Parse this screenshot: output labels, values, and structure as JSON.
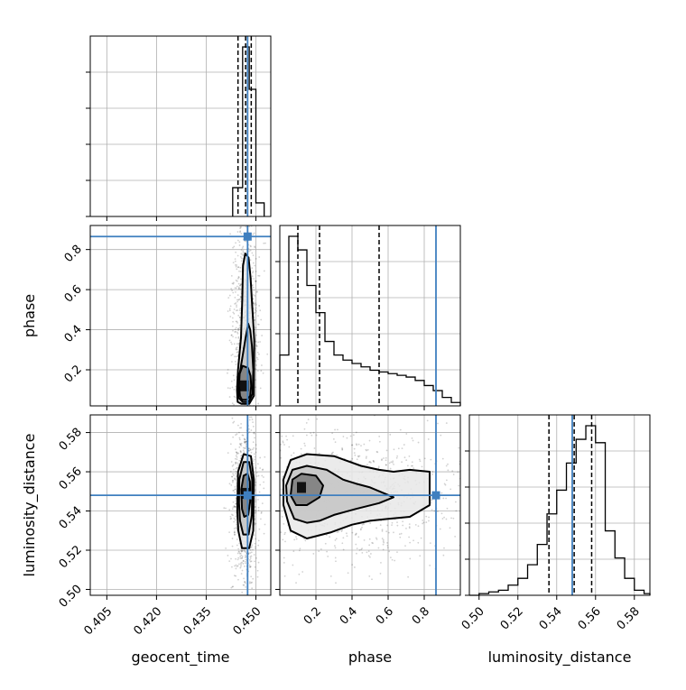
{
  "chart_data": {
    "type": "corner",
    "parameters": [
      "geocent_time",
      "phase",
      "luminosity_distance"
    ],
    "truths": {
      "geocent_time": 0.4475,
      "phase": 0.865,
      "luminosity_distance": 0.548
    },
    "accent_color": "#3f7fbf",
    "histograms": [
      {
        "parameter": "geocent_time",
        "xlim": [
          0.4,
          0.4545
        ],
        "quantiles": [
          0.4446,
          0.4469,
          0.4486
        ],
        "bin_edges": [
          0.443,
          0.446,
          0.448,
          0.45,
          0.4525
        ],
        "counts": [
          0.17,
          1.0,
          0.75,
          0.08
        ],
        "x_tick_values": [
          0.405,
          0.42,
          0.435,
          0.45
        ],
        "x_tick_labels": [
          "0.405",
          "0.420",
          "0.435",
          "0.450"
        ]
      },
      {
        "parameter": "phase",
        "xlim": [
          0.0,
          1.0
        ],
        "quantiles": [
          0.1,
          0.22,
          0.55
        ],
        "bin_edges": [
          0.0,
          0.05,
          0.1,
          0.15,
          0.2,
          0.25,
          0.3,
          0.35,
          0.4,
          0.45,
          0.5,
          0.55,
          0.6,
          0.65,
          0.7,
          0.75,
          0.8,
          0.85,
          0.9,
          0.95,
          1.0
        ],
        "counts": [
          0.3,
          1.0,
          0.92,
          0.71,
          0.55,
          0.38,
          0.3,
          0.27,
          0.25,
          0.23,
          0.21,
          0.2,
          0.19,
          0.18,
          0.17,
          0.15,
          0.12,
          0.09,
          0.05,
          0.02
        ],
        "x_tick_values": [
          0.2,
          0.4,
          0.6,
          0.8
        ],
        "x_tick_labels": [
          "0.2",
          "0.4",
          "0.6",
          "0.8"
        ]
      },
      {
        "parameter": "luminosity_distance",
        "xlim": [
          0.495,
          0.588
        ],
        "quantiles": [
          0.536,
          0.549,
          0.558
        ],
        "bin_edges": [
          0.495,
          0.5,
          0.505,
          0.51,
          0.515,
          0.52,
          0.525,
          0.53,
          0.535,
          0.54,
          0.545,
          0.55,
          0.555,
          0.56,
          0.565,
          0.57,
          0.575,
          0.58,
          0.585,
          0.588
        ],
        "counts": [
          0.0,
          0.01,
          0.02,
          0.03,
          0.06,
          0.1,
          0.18,
          0.3,
          0.48,
          0.62,
          0.78,
          0.92,
          1.0,
          0.9,
          0.38,
          0.22,
          0.1,
          0.03,
          0.01
        ],
        "x_tick_values": [
          0.5,
          0.52,
          0.54,
          0.56,
          0.58
        ],
        "x_tick_labels": [
          "0.50",
          "0.52",
          "0.54",
          "0.56",
          "0.58"
        ]
      }
    ],
    "scatter_panels": [
      {
        "x_parameter": "geocent_time",
        "y_parameter": "phase",
        "xlim": [
          0.4,
          0.4545
        ],
        "ylim": [
          0.02,
          0.92
        ],
        "y_tick_values": [
          0.2,
          0.4,
          0.6,
          0.8
        ],
        "y_tick_labels": [
          "0.2",
          "0.4",
          "0.6",
          "0.8"
        ],
        "density_peak": [
          0.4465,
          0.12
        ],
        "contours": [
          [
            [
              0.4452,
              0.07
            ],
            [
              0.4458,
              0.05
            ],
            [
              0.4472,
              0.05
            ],
            [
              0.4483,
              0.07
            ],
            [
              0.4486,
              0.12
            ],
            [
              0.4484,
              0.17
            ],
            [
              0.4476,
              0.21
            ],
            [
              0.446,
              0.22
            ],
            [
              0.4451,
              0.18
            ],
            [
              0.4449,
              0.12
            ]
          ],
          [
            [
              0.4448,
              0.06
            ],
            [
              0.446,
              0.04
            ],
            [
              0.4478,
              0.04
            ],
            [
              0.449,
              0.08
            ],
            [
              0.4492,
              0.2
            ],
            [
              0.4488,
              0.32
            ],
            [
              0.4483,
              0.4
            ],
            [
              0.4477,
              0.43
            ],
            [
              0.4469,
              0.36
            ],
            [
              0.4458,
              0.25
            ],
            [
              0.4447,
              0.14
            ]
          ],
          [
            [
              0.4445,
              0.04
            ],
            [
              0.4457,
              0.03
            ],
            [
              0.448,
              0.03
            ],
            [
              0.4494,
              0.07
            ],
            [
              0.4495,
              0.35
            ],
            [
              0.4489,
              0.52
            ],
            [
              0.4484,
              0.66
            ],
            [
              0.4478,
              0.76
            ],
            [
              0.4468,
              0.78
            ],
            [
              0.4461,
              0.72
            ],
            [
              0.4459,
              0.55
            ],
            [
              0.4455,
              0.36
            ],
            [
              0.4446,
              0.2
            ],
            [
              0.4443,
              0.1
            ]
          ]
        ]
      },
      {
        "x_parameter": "geocent_time",
        "y_parameter": "luminosity_distance",
        "xlim": [
          0.4,
          0.4545
        ],
        "ylim": [
          0.497,
          0.589
        ],
        "y_tick_values": [
          0.5,
          0.52,
          0.54,
          0.56,
          0.58
        ],
        "y_tick_labels": [
          "0.50",
          "0.52",
          "0.54",
          "0.56",
          "0.58"
        ],
        "density_peak": [
          0.4469,
          0.549
        ],
        "contours": [
          [
            [
              0.4458,
              0.541
            ],
            [
              0.4465,
              0.537
            ],
            [
              0.4477,
              0.538
            ],
            [
              0.4483,
              0.545
            ],
            [
              0.4482,
              0.555
            ],
            [
              0.4475,
              0.559
            ],
            [
              0.4463,
              0.558
            ],
            [
              0.4456,
              0.551
            ]
          ],
          [
            [
              0.4452,
              0.535
            ],
            [
              0.4462,
              0.528
            ],
            [
              0.4478,
              0.528
            ],
            [
              0.4488,
              0.538
            ],
            [
              0.4489,
              0.556
            ],
            [
              0.448,
              0.565
            ],
            [
              0.4463,
              0.565
            ],
            [
              0.445,
              0.556
            ],
            [
              0.4449,
              0.544
            ]
          ],
          [
            [
              0.4447,
              0.53
            ],
            [
              0.4458,
              0.521
            ],
            [
              0.448,
              0.521
            ],
            [
              0.4492,
              0.53
            ],
            [
              0.4494,
              0.556
            ],
            [
              0.4485,
              0.568
            ],
            [
              0.4463,
              0.569
            ],
            [
              0.4446,
              0.56
            ],
            [
              0.4444,
              0.54
            ]
          ]
        ]
      },
      {
        "x_parameter": "phase",
        "y_parameter": "luminosity_distance",
        "xlim": [
          0.0,
          1.0
        ],
        "ylim": [
          0.497,
          0.589
        ],
        "density_peak": [
          0.12,
          0.552
        ],
        "contours": [
          [
            [
              0.06,
              0.548
            ],
            [
              0.09,
              0.543
            ],
            [
              0.15,
              0.543
            ],
            [
              0.22,
              0.547
            ],
            [
              0.24,
              0.553
            ],
            [
              0.2,
              0.558
            ],
            [
              0.12,
              0.559
            ],
            [
              0.07,
              0.556
            ]
          ],
          [
            [
              0.04,
              0.545
            ],
            [
              0.08,
              0.536
            ],
            [
              0.15,
              0.534
            ],
            [
              0.22,
              0.535
            ],
            [
              0.3,
              0.538
            ],
            [
              0.42,
              0.541
            ],
            [
              0.55,
              0.544
            ],
            [
              0.63,
              0.547
            ],
            [
              0.5,
              0.552
            ],
            [
              0.42,
              0.554
            ],
            [
              0.35,
              0.556
            ],
            [
              0.26,
              0.561
            ],
            [
              0.15,
              0.563
            ],
            [
              0.07,
              0.561
            ],
            [
              0.035,
              0.553
            ]
          ],
          [
            [
              0.02,
              0.543
            ],
            [
              0.06,
              0.53
            ],
            [
              0.15,
              0.526
            ],
            [
              0.28,
              0.529
            ],
            [
              0.4,
              0.533
            ],
            [
              0.5,
              0.535
            ],
            [
              0.6,
              0.536
            ],
            [
              0.72,
              0.537
            ],
            [
              0.83,
              0.543
            ],
            [
              0.83,
              0.56
            ],
            [
              0.72,
              0.561
            ],
            [
              0.63,
              0.56
            ],
            [
              0.55,
              0.561
            ],
            [
              0.45,
              0.563
            ],
            [
              0.3,
              0.568
            ],
            [
              0.15,
              0.569
            ],
            [
              0.06,
              0.566
            ],
            [
              0.02,
              0.556
            ]
          ]
        ]
      }
    ]
  }
}
